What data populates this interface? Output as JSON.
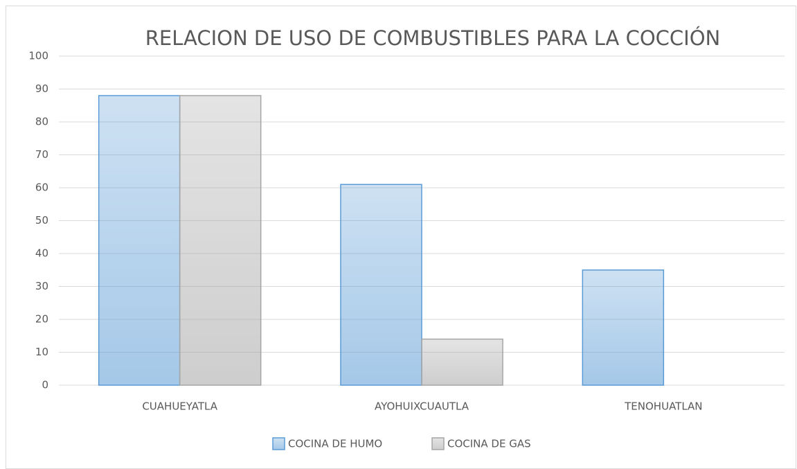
{
  "chart_data": {
    "type": "bar",
    "title": "RELACION DE USO DE COMBUSTIBLES PARA LA COCCIÓN",
    "categories": [
      "CUAHUEYATLA",
      "AYOHUIXCUAUTLA",
      "TENOHUATLAN"
    ],
    "series": [
      {
        "name": "COCINA DE HUMO",
        "color": "#5b9bd5",
        "values": [
          88,
          61,
          35
        ]
      },
      {
        "name": "COCINA DE GAS",
        "color": "#a5a5a5",
        "values": [
          88,
          14,
          0
        ]
      }
    ],
    "ylim": [
      0,
      100
    ],
    "yticks": [
      0,
      10,
      20,
      30,
      40,
      50,
      60,
      70,
      80,
      90,
      100
    ],
    "grid": true,
    "legend": "bottom"
  }
}
